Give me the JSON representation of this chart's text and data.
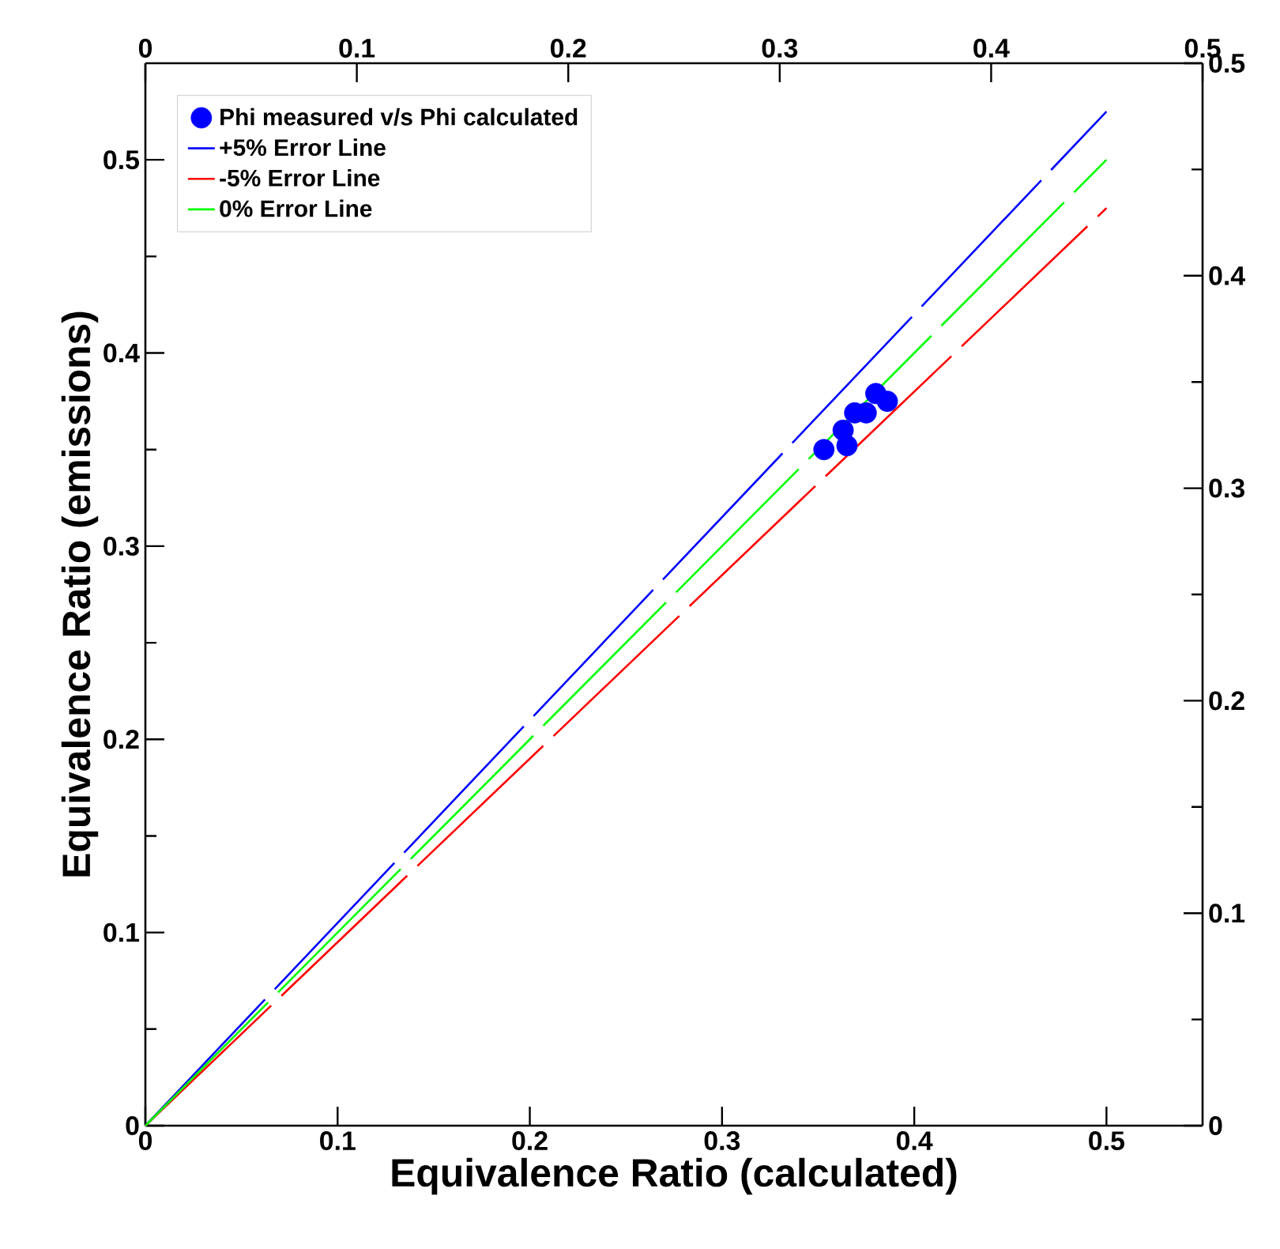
{
  "chart_data": {
    "type": "scatter",
    "xlabel": "Equivalence Ratio (calculated)",
    "ylabel": "Equivalence Ratio (emissions)",
    "xlim": [
      0,
      0.55
    ],
    "ylim": [
      0,
      0.55
    ],
    "x2lim": [
      0,
      0.5
    ],
    "y2lim": [
      0,
      0.5
    ],
    "xticks": [
      0,
      0.1,
      0.2,
      0.3,
      0.4,
      0.5
    ],
    "yticks": [
      0,
      {
        "value": 0.05,
        "label": null
      },
      0.1,
      {
        "value": 0.15,
        "label": null
      },
      0.2,
      {
        "value": 0.25,
        "label": null
      },
      0.3,
      {
        "value": 0.35,
        "label": null
      },
      0.4,
      {
        "value": 0.45,
        "label": null
      },
      0.5
    ],
    "x2ticks": [
      0,
      0.1,
      0.2,
      0.3,
      0.4,
      0.5
    ],
    "y2ticks": [
      0,
      {
        "value": 0.05,
        "label": null
      },
      0.1,
      {
        "value": 0.15,
        "label": null
      },
      0.2,
      {
        "value": 0.25,
        "label": null
      },
      0.3,
      {
        "value": 0.35,
        "label": null
      },
      0.4,
      {
        "value": 0.45,
        "label": null
      },
      0.5
    ],
    "legend": "top left",
    "series": [
      {
        "name": "Phi measured v/s Phi calculated",
        "marker": "circle",
        "color": "#0000ff",
        "x": [
          0.353,
          0.363,
          0.365,
          0.369,
          0.375,
          0.38,
          0.386
        ],
        "values": [
          0.35,
          0.36,
          0.352,
          0.369,
          0.369,
          0.379,
          0.375
        ]
      },
      {
        "name": "+5% Error Line",
        "type": "line",
        "marker": "none",
        "line_style": "dashed",
        "color": "#0000ff",
        "x": [
          0,
          0.5
        ],
        "values": [
          0,
          0.525
        ]
      },
      {
        "name": "-5% Error Line",
        "type": "line",
        "marker": "none",
        "line_style": "dashed",
        "color": "#ff0000",
        "x": [
          0,
          0.5
        ],
        "values": [
          0,
          0.475
        ]
      },
      {
        "name": "0% Error Line",
        "type": "line",
        "marker": "none",
        "line_style": "dashed",
        "color": "#00ff00",
        "x": [
          0,
          0.5
        ],
        "values": [
          0,
          0.5
        ]
      }
    ]
  }
}
